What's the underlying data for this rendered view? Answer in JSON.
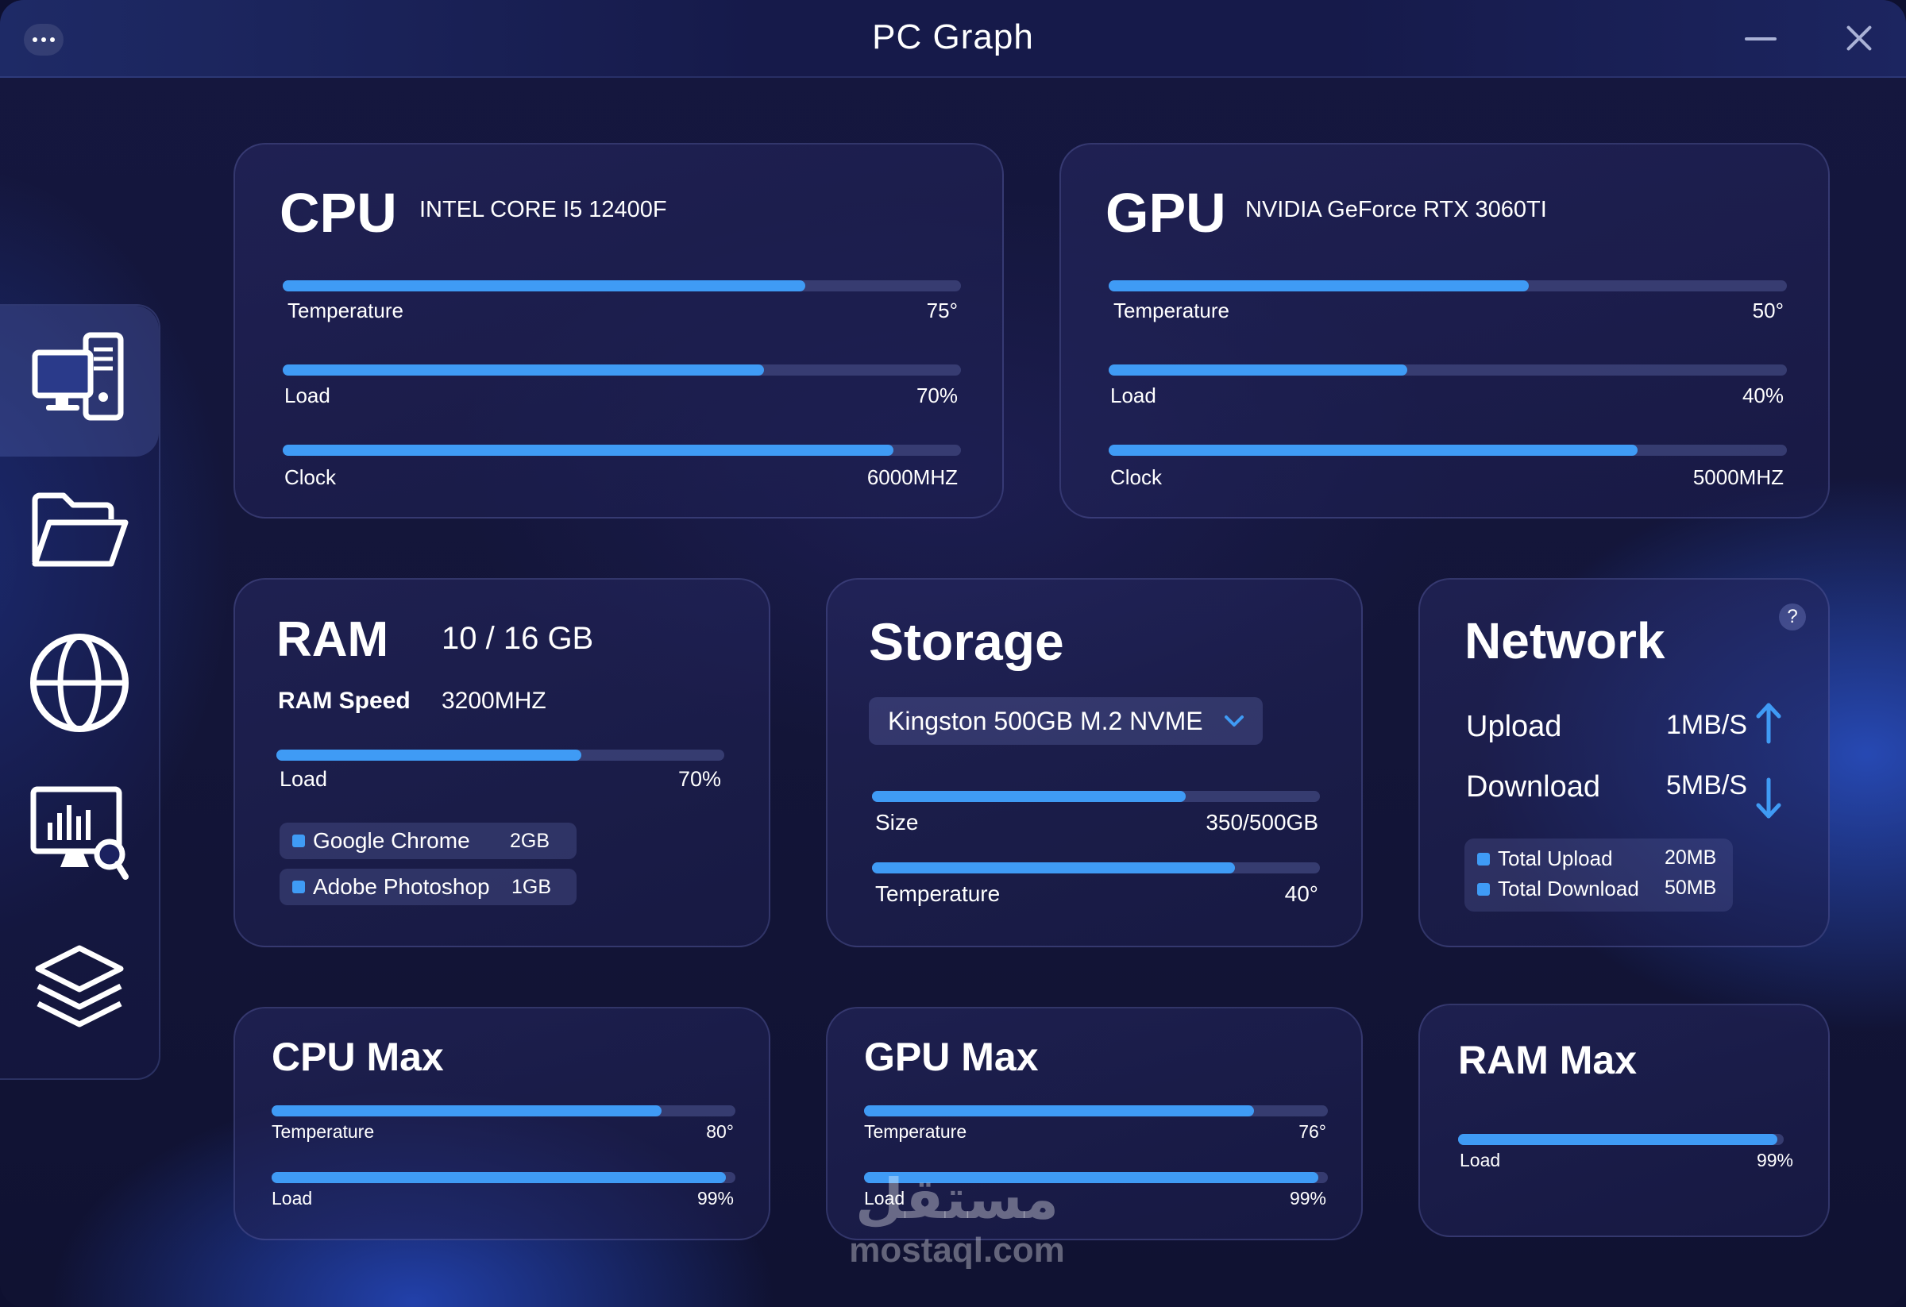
{
  "window": {
    "title": "PC Graph"
  },
  "sidebar": {
    "items": [
      {
        "icon": "computer-icon",
        "active": true
      },
      {
        "icon": "folder-icon",
        "active": false
      },
      {
        "icon": "globe-icon",
        "active": false
      },
      {
        "icon": "analytics-icon",
        "active": false
      },
      {
        "icon": "layers-icon",
        "active": false
      }
    ]
  },
  "cpu": {
    "title": "CPU",
    "model": "INTEL CORE I5 12400F",
    "temperature": {
      "label": "Temperature",
      "value": "75°",
      "level": 0.77
    },
    "load": {
      "label": "Load",
      "value": "70%",
      "level": 0.71
    },
    "clock": {
      "label": "Clock",
      "value": "6000MHZ",
      "level": 0.9
    }
  },
  "gpu": {
    "title": "GPU",
    "model": "NVIDIA GeForce RTX 3060TI",
    "temperature": {
      "label": "Temperature",
      "value": "50°",
      "level": 0.62
    },
    "load": {
      "label": "Load",
      "value": "40%",
      "level": 0.44
    },
    "clock": {
      "label": "Clock",
      "value": "5000MHZ",
      "level": 0.78
    }
  },
  "ram": {
    "title": "RAM",
    "usage": "10 / 16 GB",
    "speed_label": "RAM Speed",
    "speed_value": "3200MHZ",
    "load": {
      "label": "Load",
      "value": "70%",
      "level": 0.68
    },
    "apps": [
      {
        "name": "Google Chrome",
        "size": "2GB"
      },
      {
        "name": "Adobe Photoshop",
        "size": "1GB"
      }
    ]
  },
  "storage": {
    "title": "Storage",
    "selected_drive": "Kingston 500GB M.2 NVME",
    "size": {
      "label": "Size",
      "value": "350/500GB",
      "level": 0.7
    },
    "temperature": {
      "label": "Temperature",
      "value": "40°",
      "level": 0.81
    }
  },
  "network": {
    "title": "Network",
    "help": "?",
    "upload_label": "Upload",
    "upload_value": "1MB/S",
    "download_label": "Download",
    "download_value": "5MB/S",
    "total_upload_label": "Total Upload",
    "total_upload_value": "20MB",
    "total_download_label": "Total Download",
    "total_download_value": "50MB",
    "accent": "#3f9bf5"
  },
  "cpu_max": {
    "title": "CPU Max",
    "temperature": {
      "label": "Temperature",
      "value": "80°",
      "level": 0.84
    },
    "load": {
      "label": "Load",
      "value": "99%",
      "level": 0.98
    }
  },
  "gpu_max": {
    "title": "GPU Max",
    "temperature": {
      "label": "Temperature",
      "value": "76°",
      "level": 0.84
    },
    "load": {
      "label": "Load",
      "value": "99%",
      "level": 0.98
    }
  },
  "ram_max": {
    "title": "RAM Max",
    "load": {
      "label": "Load",
      "value": "99%",
      "level": 0.98
    }
  },
  "watermark": {
    "arabic": "مستقل",
    "site": "mostaql.com"
  },
  "colors": {
    "accent": "#3f9bf5",
    "track": "#3c4278",
    "background": "#131538"
  }
}
